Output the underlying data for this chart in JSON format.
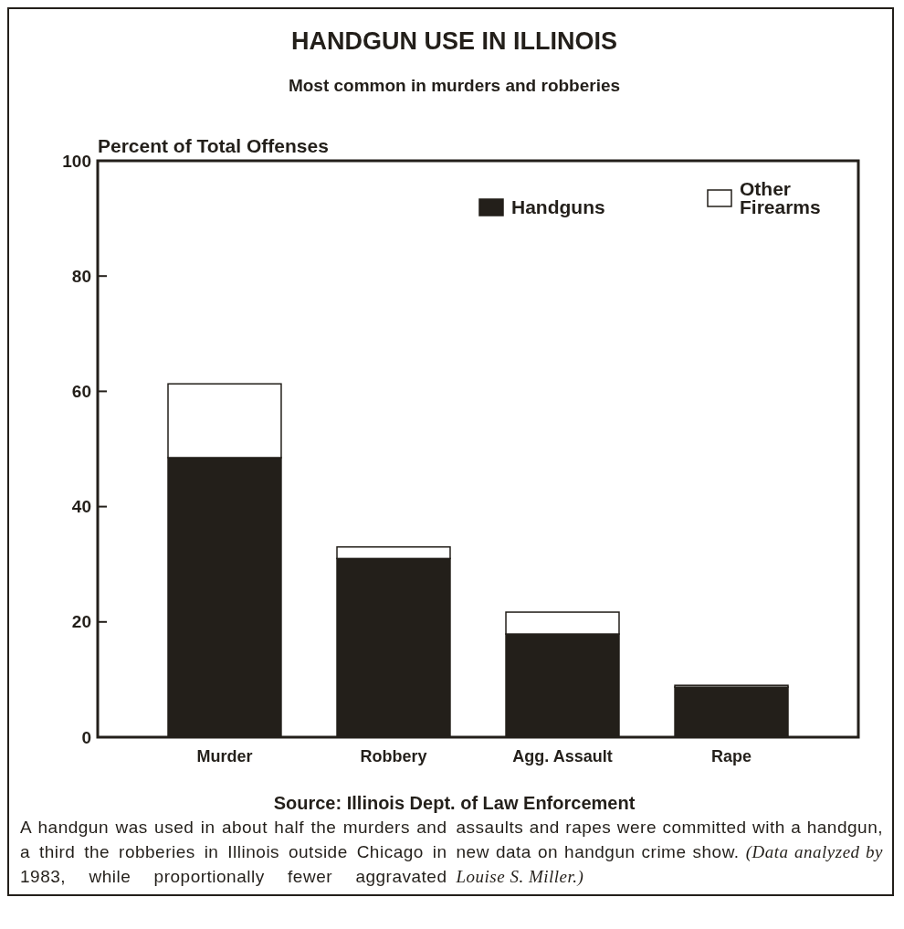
{
  "chart_data": {
    "type": "bar",
    "title": "HANDGUN USE IN ILLINOIS",
    "subtitle": "Most common in murders and robberies",
    "ylabel": "Percent of Total Offenses",
    "categories": [
      "Murder",
      "Robbery",
      "Agg. Assault",
      "Rape"
    ],
    "series": [
      {
        "name": "Handguns",
        "color": "#231f1a",
        "values": [
          48.5,
          31.0,
          17.9,
          8.7
        ]
      },
      {
        "name": "Other Firearms",
        "color": "#ffffff",
        "values": [
          12.8,
          2.0,
          3.8,
          0.3
        ]
      }
    ],
    "stacked": true,
    "ylim": [
      0,
      100
    ],
    "yticks": [
      0,
      20,
      40,
      60,
      80,
      100
    ],
    "grid": false,
    "legend": "top right",
    "annotations": [
      "Source: Illinois Dept. of Law Enforcement",
      "A handgun was used in about half the murders and a third the robberies in Illinois outside Chicago in 1983, while proportionally fewer aggravated assaults and rapes were committed with a handgun, new data on handgun crime show.",
      "(Data analyzed by Louise S. Miller.)"
    ]
  }
}
